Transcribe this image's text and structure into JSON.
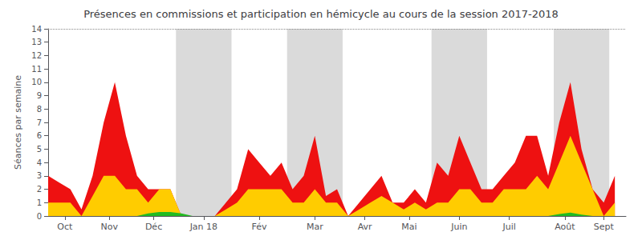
{
  "chart_data": {
    "type": "area",
    "title": "Présences en commissions et participation en hémicycle au cours de la session 2017-2018",
    "ylabel": "Séances par semaine",
    "x": [
      0,
      1,
      2,
      3,
      4,
      5,
      6,
      7,
      8,
      9,
      10,
      11,
      12,
      13,
      14,
      15,
      16,
      17,
      18,
      19,
      20,
      21,
      22,
      23,
      24,
      25,
      26,
      27,
      28,
      29,
      30,
      31,
      32,
      33,
      34,
      35,
      36,
      37,
      38,
      39,
      40,
      41,
      42,
      43,
      44,
      45,
      46,
      47,
      48,
      49,
      50,
      51
    ],
    "xlim": [
      0,
      52
    ],
    "xticks": [
      {
        "value": 1.5,
        "label": "Oct"
      },
      {
        "value": 5.5,
        "label": "Nov"
      },
      {
        "value": 9.5,
        "label": "Déc"
      },
      {
        "value": 14.0,
        "label": "Jan 18"
      },
      {
        "value": 19.0,
        "label": "Fév"
      },
      {
        "value": 24.0,
        "label": "Mar"
      },
      {
        "value": 28.5,
        "label": "Avr"
      },
      {
        "value": 32.5,
        "label": "Mai"
      },
      {
        "value": 37.0,
        "label": "Juin"
      },
      {
        "value": 41.5,
        "label": "Juil"
      },
      {
        "value": 46.5,
        "label": "Août"
      },
      {
        "value": 50.0,
        "label": "Sept"
      }
    ],
    "ylim": [
      0,
      14
    ],
    "yticks": [
      0,
      1,
      2,
      3,
      4,
      5,
      6,
      7,
      8,
      9,
      10,
      11,
      12,
      13,
      14
    ],
    "grid": false,
    "series": [
      {
        "color": "#ee1111",
        "values": [
          3,
          2.5,
          2,
          0.5,
          3,
          7,
          10,
          6,
          3,
          2,
          2,
          2,
          0,
          0,
          0,
          0,
          1,
          2,
          5,
          4,
          3,
          4,
          2,
          3,
          6,
          1.5,
          2,
          0,
          1,
          2,
          3,
          1,
          1,
          2,
          1,
          4,
          3,
          6,
          4,
          2,
          2,
          3,
          4,
          6,
          6,
          3,
          7,
          10,
          5,
          2,
          1,
          3
        ]
      },
      {
        "color": "#ffcc00",
        "values": [
          1,
          1,
          1,
          0,
          1.5,
          3,
          3,
          2,
          2,
          1,
          2,
          2,
          0,
          0,
          0,
          0,
          0.5,
          1,
          2,
          2,
          2,
          2,
          1,
          1,
          2,
          1,
          1,
          0,
          0.5,
          1,
          1.5,
          1,
          0.5,
          1,
          0.5,
          1,
          1,
          2,
          2,
          1,
          1,
          2,
          2,
          2,
          3,
          2,
          4,
          6,
          4,
          2,
          0,
          1
        ]
      },
      {
        "color": "#22bb22",
        "values": [
          0,
          0,
          0,
          0,
          0,
          0,
          0,
          0,
          0,
          0.2,
          0.3,
          0.3,
          0.2,
          0,
          0,
          0,
          0,
          0,
          0,
          0,
          0,
          0,
          0,
          0,
          0,
          0,
          0,
          0,
          0,
          0,
          0,
          0,
          0,
          0,
          0,
          0,
          0,
          0,
          0,
          0,
          0,
          0,
          0,
          0,
          0,
          0,
          0.15,
          0.25,
          0.1,
          0,
          0,
          0
        ]
      }
    ],
    "shade_bands": [
      [
        11.5,
        16.5
      ],
      [
        21.5,
        26.5
      ],
      [
        34.5,
        39.5
      ],
      [
        45.5,
        50.5
      ]
    ],
    "shade_color": "#bbbbbb",
    "hlines": [
      14
    ]
  }
}
